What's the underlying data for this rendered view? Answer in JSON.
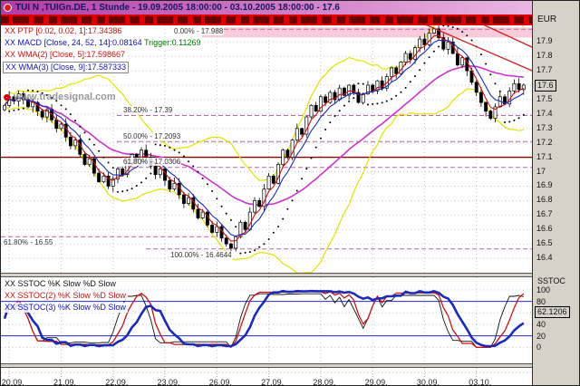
{
  "window": {
    "title": "TUI N ,TUIGn.DE, 1 Stunde - 19.09.2005 18:00:00 - 03.10.2005 18:00:00 - 17.6"
  },
  "watermark": {
    "text": "www.tradesignal.com"
  },
  "legend": {
    "ptp": "XX PTP [0.02, 0.02, 1]:17.34386",
    "macd": "XX MACD [Close, 24, 52, 14]:0.08164",
    "macd_trigger": "Trigger:0.11269",
    "wma2": "XX WMA(2) [Close, 5]:17.598667",
    "wma3": "XX WMA(3) [Close, 9]:17.587333",
    "sstoc1": "XX SSTOC %K Slow %D Slow",
    "sstoc2": "XX SSTOC(2) %K Slow %D Slow",
    "sstoc3": "XX SSTOC(3) %K Slow %D Slow"
  },
  "fib_labels": {
    "f0": "0.00% - 17.988",
    "f382": "38.20% - 17.39",
    "f50": "50.00% - 17.2093",
    "f618": "61.80% - 17.0306",
    "f618b": "61.80% - 16.55",
    "f100": "100.00% - 16.4644"
  },
  "axis": {
    "currency": "EUR",
    "price_ticks": [
      "17.9",
      "17.8",
      "17.7",
      "17.6",
      "17.5",
      "17.4",
      "17.3",
      "17.2",
      "17.1",
      "17",
      "16.9",
      "16.8",
      "16.7",
      "16.6",
      "16.5",
      "16.4"
    ],
    "current_price_tick": "17.6",
    "sstoc_title": "SSTOC",
    "sstoc_ticks": [
      "100",
      "80",
      "40",
      "20",
      "0"
    ],
    "sstoc_current": "62.1206"
  },
  "colors": {
    "titlebar_left": "#b23aa6",
    "titlebar_right": "#eab6e2",
    "ticker_red": "#de0000",
    "wma_fast_red": "#cc1111",
    "wma_slow_blue": "#1b2bb8",
    "long_ma_magenta": "#cc33cc",
    "bands_yellow": "#e2e200",
    "hline_maroon": "#8b0000",
    "fib_line_pink": "#c95faf",
    "sstoc_black": "#111111",
    "sstoc_red": "#cc1111",
    "sstoc_blue": "#1b2bb8"
  },
  "chart_data": {
    "type": "candlestick",
    "symbol": "TUI N ,TUIGn.DE",
    "interval": "1 Stunde",
    "range_start": "19.09.2005 18:00:00",
    "range_end": "03.10.2005 18:00:00",
    "last_price": 17.6,
    "ylim": [
      16.4,
      17.9
    ],
    "x_dates": [
      "20.09.",
      "21.09.",
      "22.09.",
      "23.09.",
      "26.09.",
      "27.09.",
      "28.09.",
      "29.09.",
      "30.09.",
      "03.10."
    ],
    "closes": [
      17.46,
      17.52,
      17.49,
      17.54,
      17.5,
      17.45,
      17.48,
      17.42,
      17.38,
      17.43,
      17.36,
      17.3,
      17.33,
      17.24,
      17.18,
      17.22,
      17.12,
      17.05,
      17.09,
      16.99,
      16.93,
      16.97,
      16.9,
      16.95,
      17.02,
      16.98,
      17.06,
      17.12,
      17.08,
      17.15,
      17.1,
      17.04,
      16.98,
      17.02,
      16.94,
      16.88,
      16.92,
      16.84,
      16.78,
      16.82,
      16.74,
      16.68,
      16.72,
      16.63,
      16.58,
      16.62,
      16.54,
      16.5,
      16.47,
      16.55,
      16.65,
      16.6,
      16.72,
      16.8,
      16.76,
      16.88,
      16.97,
      16.92,
      17.05,
      17.15,
      17.1,
      17.22,
      17.3,
      17.26,
      17.38,
      17.46,
      17.42,
      17.52,
      17.48,
      17.55,
      17.5,
      17.58,
      17.53,
      17.6,
      17.55,
      17.48,
      17.54,
      17.6,
      17.56,
      17.63,
      17.58,
      17.66,
      17.72,
      17.68,
      17.76,
      17.82,
      17.78,
      17.86,
      17.92,
      17.88,
      17.96,
      17.99,
      17.93,
      17.85,
      17.9,
      17.82,
      17.74,
      17.79,
      17.7,
      17.62,
      17.55,
      17.48,
      17.42,
      17.37,
      17.45,
      17.52,
      17.47,
      17.56,
      17.61,
      17.57,
      17.6
    ],
    "fib_levels": [
      {
        "pct": "0.00%",
        "price": 17.988
      },
      {
        "pct": "38.20%",
        "price": 17.39
      },
      {
        "pct": "50.00%",
        "price": 17.2093
      },
      {
        "pct": "61.80%",
        "price": 17.0306
      },
      {
        "pct": "61.80%",
        "price": 16.55
      },
      {
        "pct": "100.00%",
        "price": 16.4644
      }
    ],
    "horizontal_line": 17.1,
    "indicators": {
      "ptp": {
        "params": [
          0.02,
          0.02,
          1
        ],
        "value": 17.34386
      },
      "macd": {
        "params": "Close, 24, 52, 14",
        "value": 0.08164,
        "trigger": 0.11269
      },
      "wma2": {
        "params": "Close, 5",
        "value": 17.598667
      },
      "wma3": {
        "params": "Close, 9",
        "value": 17.587333
      },
      "sstoc_value": 62.1206
    }
  }
}
